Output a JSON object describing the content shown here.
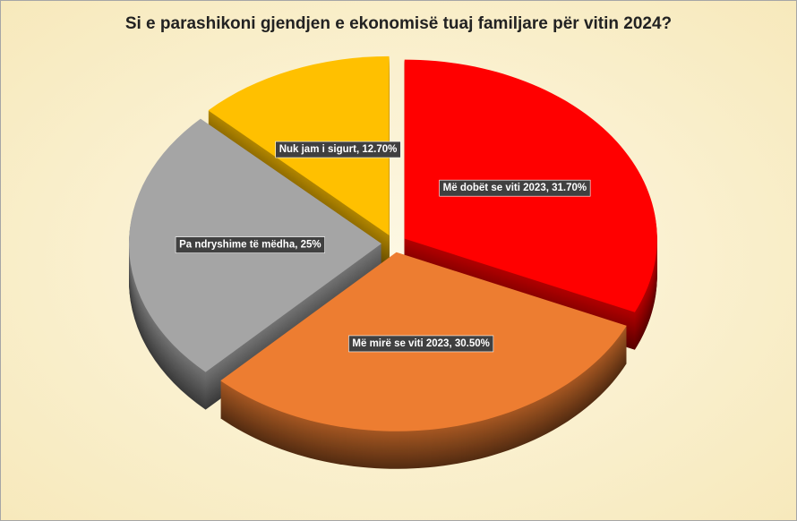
{
  "chart_data": {
    "type": "pie",
    "title": "Si e parashikoni gjendjen e ekonomisë tuaj familjare për vitin 2024?",
    "values": [
      31.7,
      30.5,
      25,
      12.7
    ],
    "value_labels": [
      "Më dobët se viti 2023, 31.70%",
      "Më mirë se viti 2023, 30.50%",
      "Pa ndryshime të mëdha, 25%",
      "Nuk jam i sigurt, 12.70%"
    ],
    "colors": [
      "#ff0000",
      "#ed7d31",
      "#a5a5a5",
      "#ffc000"
    ]
  }
}
